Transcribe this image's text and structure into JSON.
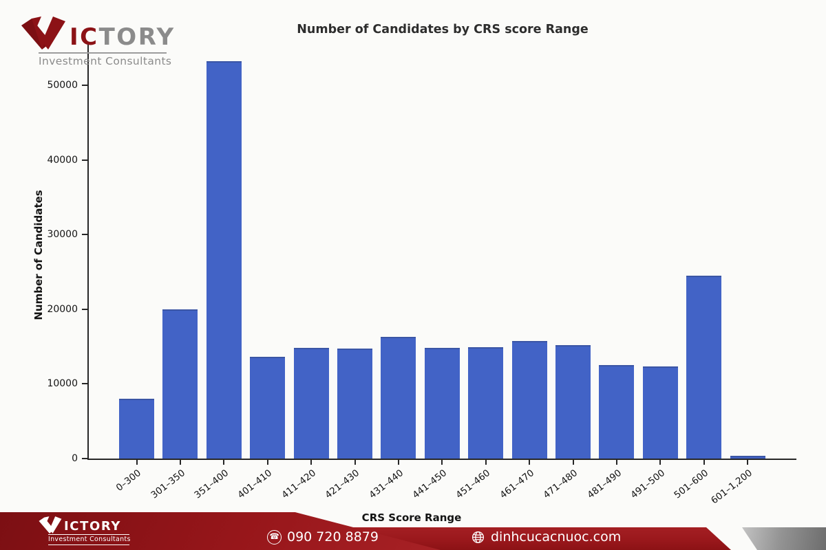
{
  "logo": {
    "letters_red": "IC",
    "letters_gray": "TORY",
    "subtitle": "Investment Consultants",
    "v_icon": "victory-v-swoosh",
    "brand_red": "#8c1216",
    "brand_gray": "#8b8b8b"
  },
  "chart_data": {
    "type": "bar",
    "title": "Number of Candidates by CRS score Range",
    "xlabel": "CRS Score Range",
    "ylabel": "Number of Candidates",
    "categories": [
      "0–300",
      "301–350",
      "351–400",
      "401–410",
      "411–420",
      "421–430",
      "431–440",
      "441–450",
      "451–460",
      "461–470",
      "471–480",
      "481–490",
      "491–500",
      "501–600",
      "601–1,200"
    ],
    "values": [
      8000,
      20000,
      53250,
      13600,
      14800,
      14750,
      16300,
      14800,
      14950,
      15750,
      15200,
      12500,
      12300,
      24500,
      350
    ],
    "yticks": [
      0,
      10000,
      20000,
      30000,
      40000,
      50000
    ],
    "ylim": [
      0,
      55700
    ],
    "bar_color": "#4263c6",
    "bar_edge_color": "#3a55a5",
    "axis_color": "#262626",
    "grid": false,
    "legend": null,
    "x_tick_rotation_deg": 38
  },
  "footer": {
    "phone": "090 720 8879",
    "phone_icon_glyph": "☎",
    "website": "dinhcucacnuoc.com",
    "website_icon": "globe-icon",
    "band_red": "#9a181c",
    "ribbon_red": "#8a1215",
    "flag_gray": "#949494"
  }
}
